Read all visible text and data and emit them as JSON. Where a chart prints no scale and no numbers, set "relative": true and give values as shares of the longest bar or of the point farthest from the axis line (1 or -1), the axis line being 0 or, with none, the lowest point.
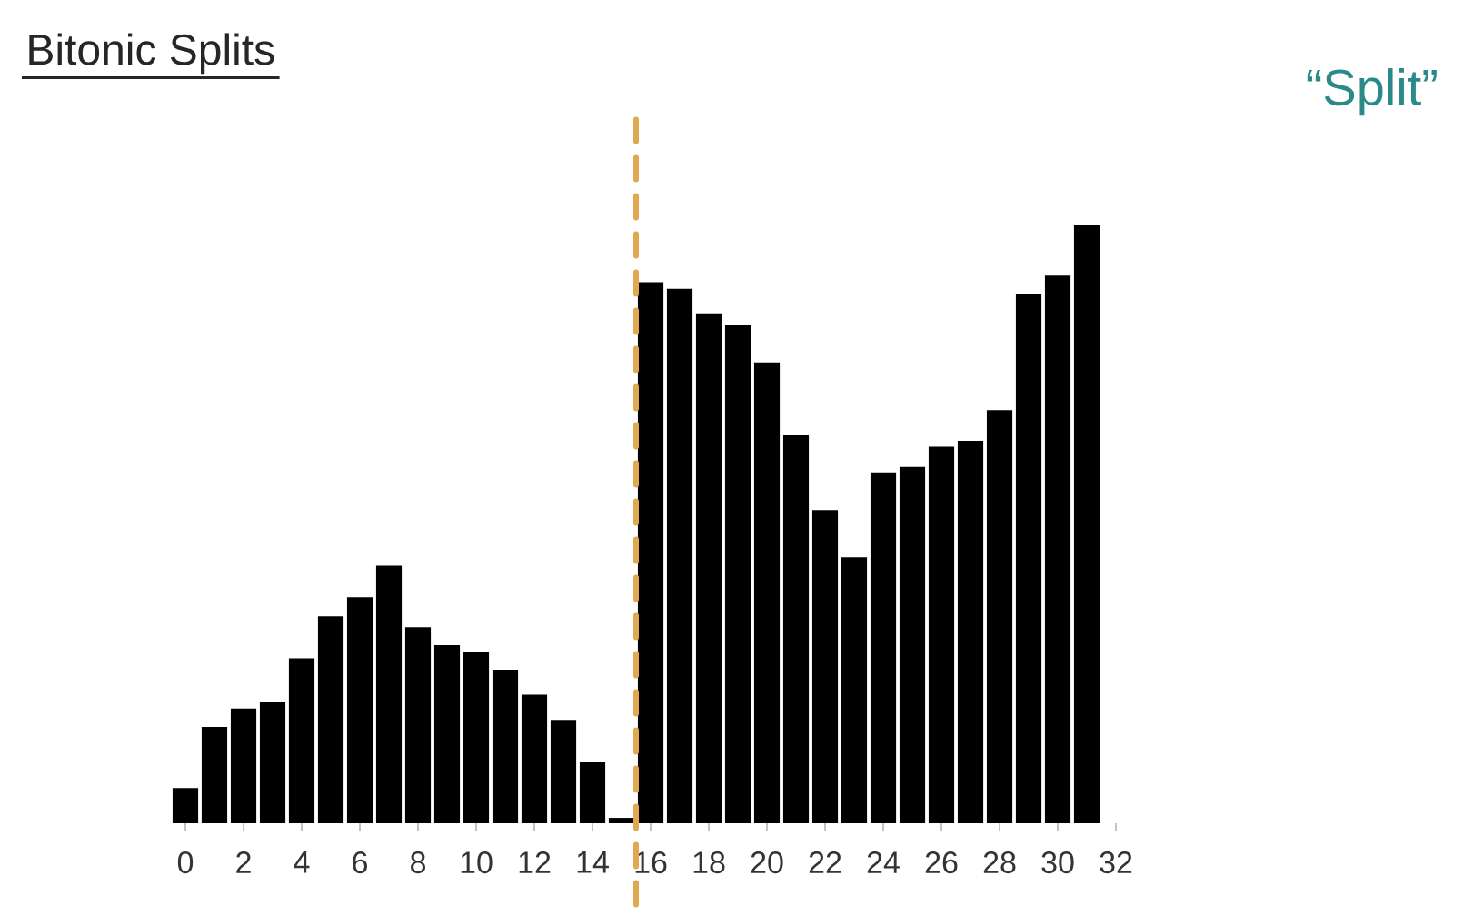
{
  "chart_data": {
    "type": "bar",
    "title": "Bitonic Splits",
    "annotations": [
      "“Split”"
    ],
    "relative": true,
    "color": "#000000",
    "x": [
      0,
      1,
      2,
      3,
      4,
      5,
      6,
      7,
      8,
      9,
      10,
      11,
      12,
      13,
      14,
      15,
      16,
      17,
      18,
      19,
      20,
      21,
      22,
      23,
      24,
      25,
      26,
      27,
      28,
      29,
      30,
      31
    ],
    "values": [
      0.059,
      0.161,
      0.192,
      0.203,
      0.276,
      0.346,
      0.378,
      0.431,
      0.328,
      0.298,
      0.287,
      0.257,
      0.215,
      0.173,
      0.103,
      0.009,
      0.905,
      0.894,
      0.853,
      0.833,
      0.771,
      0.649,
      0.524,
      0.445,
      0.587,
      0.596,
      0.63,
      0.64,
      0.691,
      0.886,
      0.916,
      1
    ],
    "xlim": [
      -0.5,
      32
    ],
    "xticks": [
      0,
      2,
      4,
      6,
      8,
      10,
      12,
      14,
      16,
      18,
      20,
      22,
      24,
      26,
      28,
      30,
      32
    ],
    "ref_lines": [
      {
        "axis": "x",
        "value": 15.5,
        "color": "#e0a850",
        "line_style": "dashed"
      }
    ]
  }
}
